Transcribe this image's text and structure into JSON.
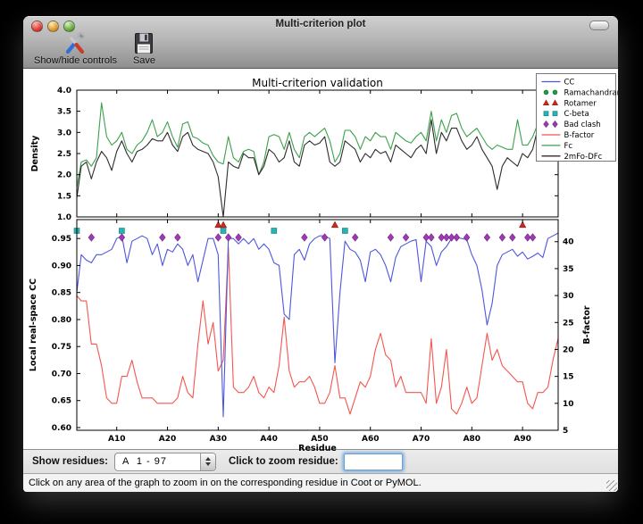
{
  "window": {
    "title": "Multi-criterion plot"
  },
  "toolbar": {
    "show_hide_label": "Show/hide controls",
    "save_label": "Save"
  },
  "controls": {
    "show_residues_label": "Show residues:",
    "residue_range_value": "A  1 - 97",
    "zoom_residue_label": "Click to zoom residue:",
    "zoom_input_value": ""
  },
  "status_bar": {
    "text": "Click on any area of the graph to zoom in on the corresponding residue in Coot or PyMOL."
  },
  "chart_data": {
    "type": "line",
    "title": "Multi-criterion validation",
    "background": "#ffffff",
    "x_start": 2,
    "x_end": 97,
    "xlabel": "Residue",
    "xtick_values": [
      10,
      20,
      30,
      40,
      50,
      60,
      70,
      80,
      90
    ],
    "xtick_labels": [
      "A10",
      "A20",
      "A30",
      "A40",
      "A50",
      "A60",
      "A70",
      "A80",
      "A90"
    ],
    "subplots": [
      {
        "name": "density",
        "type": "line",
        "ylabel": "Density",
        "ylim": [
          1.0,
          4.0
        ],
        "yticks": [
          1.0,
          1.5,
          2.0,
          2.5,
          3.0,
          3.5,
          4.0
        ],
        "series": [
          {
            "name": "Fc",
            "color": "#3da04b",
            "values": [
              1.7,
              2.3,
              2.35,
              2.2,
              2.4,
              3.7,
              2.9,
              2.7,
              2.8,
              3.0,
              2.6,
              2.5,
              2.7,
              2.8,
              3.0,
              3.3,
              2.9,
              3.0,
              3.25,
              2.9,
              2.65,
              3.2,
              3.25,
              2.9,
              2.85,
              2.75,
              2.7,
              2.45,
              2.3,
              2.25,
              2.9,
              2.4,
              2.3,
              2.55,
              2.6,
              2.55,
              2.0,
              2.3,
              2.9,
              2.95,
              2.9,
              2.6,
              3.0,
              2.6,
              2.4,
              2.9,
              3.0,
              2.9,
              3.0,
              3.1,
              2.8,
              2.3,
              2.5,
              3.05,
              3.05,
              2.9,
              2.6,
              2.9,
              2.8,
              3.0,
              2.9,
              2.9,
              2.6,
              3.0,
              2.9,
              2.8,
              2.75,
              2.9,
              3.0,
              2.8,
              3.5,
              2.8,
              3.3,
              3.0,
              3.4,
              3.45,
              3.1,
              2.9,
              3.0,
              3.1,
              2.9,
              2.7,
              2.6,
              2.7,
              2.65,
              2.6,
              2.6,
              3.3,
              2.7,
              2.7,
              2.9,
              3.2,
              2.9,
              3.1,
              3.0,
              3.5
            ]
          },
          {
            "name": "2mFo-DFc",
            "color": "#2d2d2d",
            "values": [
              1.45,
              2.2,
              2.3,
              1.9,
              2.3,
              2.55,
              2.4,
              2.1,
              2.55,
              2.8,
              2.5,
              2.3,
              2.55,
              2.6,
              2.7,
              2.85,
              2.8,
              2.8,
              3.0,
              2.7,
              2.55,
              2.9,
              3.0,
              2.7,
              2.6,
              2.55,
              2.5,
              2.3,
              1.95,
              1.0,
              2.3,
              2.2,
              2.15,
              2.5,
              2.4,
              2.4,
              2.0,
              2.2,
              2.6,
              2.5,
              2.3,
              2.4,
              2.8,
              2.3,
              2.2,
              2.7,
              2.8,
              2.7,
              2.75,
              2.9,
              2.3,
              2.2,
              2.3,
              2.8,
              2.7,
              2.6,
              2.3,
              2.5,
              2.4,
              2.6,
              2.5,
              2.55,
              2.3,
              2.7,
              2.6,
              2.5,
              2.4,
              2.6,
              2.7,
              2.5,
              3.3,
              2.5,
              3.0,
              2.8,
              3.1,
              3.1,
              2.8,
              2.6,
              2.7,
              2.9,
              2.6,
              2.4,
              2.2,
              1.65,
              2.2,
              2.4,
              2.3,
              2.2,
              2.5,
              2.4,
              2.6,
              3.1,
              2.5,
              2.8,
              2.5,
              2.9
            ]
          }
        ]
      },
      {
        "name": "cc-bfactor",
        "type": "line+scatter",
        "xlabel": "Residue",
        "ylabel_left": "Local real-space CC",
        "ylabel_right": "B-factor",
        "ylim_left": [
          0.595,
          0.985
        ],
        "ylim_right": [
          5,
          44.1
        ],
        "yticks_left": [
          0.6,
          0.65,
          0.7,
          0.75,
          0.8,
          0.85,
          0.9,
          0.95
        ],
        "yticks_right": [
          5,
          10,
          15,
          20,
          25,
          30,
          35,
          40
        ],
        "series": [
          {
            "name": "CC",
            "axis": "left",
            "color": "#4d57dd",
            "values": [
              0.85,
              0.92,
              0.91,
              0.905,
              0.92,
              0.92,
              0.925,
              0.93,
              0.95,
              0.955,
              0.905,
              0.945,
              0.95,
              0.955,
              0.95,
              0.92,
              0.94,
              0.9,
              0.93,
              0.925,
              0.94,
              0.93,
              0.9,
              0.92,
              0.87,
              0.91,
              0.95,
              0.95,
              0.92,
              0.62,
              0.95,
              0.95,
              0.94,
              0.95,
              0.94,
              0.95,
              0.93,
              0.94,
              0.93,
              0.905,
              0.9,
              0.81,
              0.8,
              0.92,
              0.93,
              0.91,
              0.94,
              0.95,
              0.955,
              0.955,
              0.95,
              0.72,
              0.85,
              0.945,
              0.93,
              0.925,
              0.91,
              0.87,
              0.925,
              0.93,
              0.92,
              0.9,
              0.87,
              0.915,
              0.935,
              0.94,
              0.945,
              0.948,
              0.87,
              0.945,
              0.935,
              0.9,
              0.925,
              0.935,
              0.95,
              0.952,
              0.95,
              0.948,
              0.92,
              0.9,
              0.855,
              0.79,
              0.83,
              0.9,
              0.92,
              0.925,
              0.93,
              0.917,
              0.925,
              0.912,
              0.917,
              0.923,
              0.915,
              0.95,
              0.955,
              0.96
            ]
          },
          {
            "name": "B-factor",
            "axis": "right",
            "color": "#f4564e",
            "values": [
              30,
              29,
              29,
              21,
              21,
              17,
              11,
              10,
              10,
              15,
              15,
              18,
              14,
              11,
              11,
              11,
              10,
              10,
              10,
              10,
              11,
              15,
              12,
              11,
              21,
              29,
              21,
              25,
              16,
              18,
              39,
              13,
              12,
              12,
              13,
              15,
              12,
              11,
              13,
              12,
              17,
              26,
              16,
              13,
              14,
              14,
              15,
              13,
              10,
              10,
              12,
              17,
              11,
              11,
              8,
              11,
              14,
              13,
              15,
              20,
              23,
              19,
              18,
              13,
              15,
              12,
              12,
              12,
              12,
              10,
              22,
              10,
              13,
              20,
              9,
              8,
              10,
              13,
              10,
              11,
              17,
              23,
              18,
              20,
              17,
              16,
              15,
              14,
              14,
              10,
              9,
              12,
              12,
              13,
              18,
              22
            ]
          }
        ],
        "markers": [
          {
            "name": "Ramachandran",
            "shape": "circle",
            "color": "#1f9e40",
            "edge": "#0f6e2c",
            "residues": []
          },
          {
            "name": "Rotamer",
            "shape": "triangle",
            "color": "#d2281e",
            "edge": "#8c1a12",
            "residues": [
              30,
              31,
              53,
              90
            ]
          },
          {
            "name": "C-beta",
            "shape": "square",
            "color": "#25b3b3",
            "edge": "#157d7b",
            "residues": [
              2,
              11,
              31,
              41,
              55
            ]
          },
          {
            "name": "Bad clash",
            "shape": "diamond",
            "color": "#9d3bb3",
            "edge": "#6e2380",
            "residues": [
              5,
              11,
              19,
              22,
              30,
              32,
              34,
              47,
              51,
              57,
              64,
              67,
              71,
              72,
              74,
              75,
              76,
              77,
              79,
              83,
              86,
              88,
              91,
              92
            ]
          }
        ]
      }
    ],
    "legend": {
      "position": "upper right",
      "entries": [
        {
          "label": "CC",
          "type": "line",
          "color": "#4d57dd"
        },
        {
          "label": "Ramachandran",
          "type": "markers",
          "shape": "circle",
          "color": "#1f9e40",
          "edge": "#0f6e2c"
        },
        {
          "label": "Rotamer",
          "type": "markers",
          "shape": "triangle",
          "color": "#d2281e",
          "edge": "#8c1a12"
        },
        {
          "label": "C-beta",
          "type": "markers",
          "shape": "square",
          "color": "#25b3b3",
          "edge": "#157d7b"
        },
        {
          "label": "Bad clash",
          "type": "markers",
          "shape": "diamond",
          "color": "#9d3bb3",
          "edge": "#6e2380"
        },
        {
          "label": "B-factor",
          "type": "line",
          "color": "#f4564e"
        },
        {
          "label": "Fc",
          "type": "line",
          "color": "#3da04b"
        },
        {
          "label": "2mFo-DFc",
          "type": "line",
          "color": "#2d2d2d"
        }
      ]
    }
  }
}
